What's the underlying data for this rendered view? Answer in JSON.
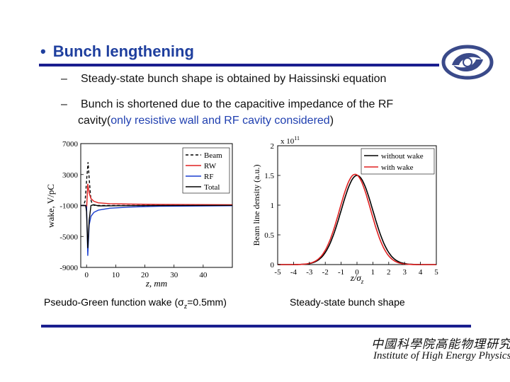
{
  "slide": {
    "title": "Bunch lengthening",
    "bullet_symbol": "•",
    "dash": "–",
    "sub1": "Steady-state bunch shape is obtained by Haissinski equation",
    "sub2_line1": "Bunch is shortened due to the capacitive impedance of the RF",
    "sub2_line2_prefix": "cavity(",
    "sub2_line2_blue": "only resistive wall and RF cavity considered",
    "sub2_line2_suffix": ")",
    "caption_left_prefix": "Pseudo-Green function wake (σ",
    "caption_left_sub": "z",
    "caption_left_suffix": "=0.5mm)",
    "caption_right": "Steady-state bunch shape",
    "institute_cn": "中國科學院高能物理研究所",
    "institute_en": "Institute of High Energy Physics",
    "logo_icon": "ihep-logo-icon"
  },
  "chart_data": [
    {
      "type": "line",
      "title": "",
      "xlabel": "z, mm",
      "ylabel": "wake, V/pC",
      "xlim": [
        -2,
        50
      ],
      "ylim": [
        -9000,
        7000
      ],
      "xticks": [
        0,
        10,
        20,
        30,
        40
      ],
      "yticks": [
        7000,
        3000,
        -1000,
        -5000,
        -9000
      ],
      "legend": "top-right",
      "series": [
        {
          "name": "Beam",
          "color": "#000000",
          "dash": "4,3",
          "x": [
            -2,
            -1,
            -0.5,
            0,
            0.5,
            1,
            1.5,
            2,
            3,
            50
          ],
          "y": [
            -1000,
            -960,
            -400,
            2200,
            4600,
            2000,
            -300,
            -900,
            -1000,
            -1000
          ]
        },
        {
          "name": "RW",
          "color": "#e02020",
          "dash": "",
          "x": [
            -2,
            -0.3,
            0,
            0.4,
            0.9,
            1.5,
            2.5,
            4,
            8,
            15,
            25,
            50
          ],
          "y": [
            -1000,
            -1000,
            -1600,
            1800,
            600,
            -100,
            -450,
            -650,
            -760,
            -820,
            -860,
            -900
          ]
        },
        {
          "name": "RF",
          "color": "#1a3fd0",
          "dash": "",
          "x": [
            -2,
            -0.3,
            0,
            0.4,
            0.9,
            1.5,
            2.5,
            4,
            8,
            15,
            25,
            50
          ],
          "y": [
            -1000,
            -1000,
            -1200,
            -7500,
            -3500,
            -2400,
            -1900,
            -1600,
            -1350,
            -1200,
            -1100,
            -1030
          ]
        },
        {
          "name": "Total",
          "color": "#000000",
          "dash": "",
          "x": [
            -2,
            -0.3,
            0,
            0.4,
            0.9,
            1.5,
            2.5,
            4,
            8,
            15,
            25,
            50
          ],
          "y": [
            -1000,
            -1000,
            -1800,
            -6500,
            -2900,
            -1000,
            -900,
            -1050,
            -1040,
            -1020,
            -1000,
            -980
          ]
        }
      ]
    },
    {
      "type": "line",
      "title": "",
      "xlabel": "z/σ_z",
      "ylabel": "Beam line density (a.u.)",
      "y_multiplier": "x 10^11",
      "xlim": [
        -5,
        5
      ],
      "ylim": [
        0,
        2
      ],
      "xticks": [
        -5,
        -4,
        -3,
        -2,
        -1,
        0,
        1,
        2,
        3,
        4,
        5
      ],
      "yticks": [
        0,
        0.5,
        1,
        1.5,
        2
      ],
      "legend": "top-right",
      "series": [
        {
          "name": "without wake",
          "color": "#000000",
          "model": {
            "amplitude": 1.5,
            "center": 0.0,
            "sigma": 1.0
          }
        },
        {
          "name": "with wake",
          "color": "#e02020",
          "model": {
            "amplitude": 1.52,
            "center": -0.12,
            "sigma": 0.98
          }
        }
      ]
    }
  ]
}
